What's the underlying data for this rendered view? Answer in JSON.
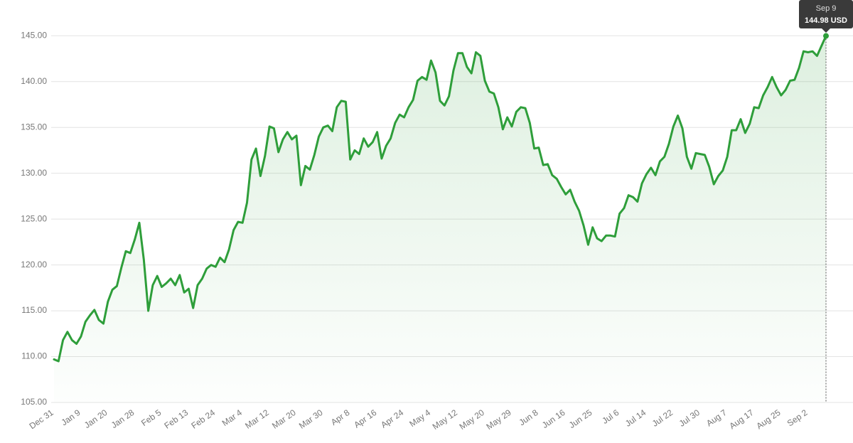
{
  "chart_data": {
    "type": "line",
    "color": "#2e9e3a",
    "grid": true,
    "ylim": [
      105,
      148.9
    ],
    "yticks": [
      {
        "value": 105,
        "label": "105.00"
      },
      {
        "value": 110,
        "label": "110.00"
      },
      {
        "value": 115,
        "label": "115.00"
      },
      {
        "value": 120,
        "label": "120.00"
      },
      {
        "value": 125,
        "label": "125.00"
      },
      {
        "value": 130,
        "label": "130.00"
      },
      {
        "value": 135,
        "label": "135.00"
      },
      {
        "value": 140,
        "label": "140.00"
      },
      {
        "value": 145,
        "label": "145.00"
      }
    ],
    "categories": [
      "Dec 31",
      null,
      null,
      null,
      null,
      null,
      "Jan 9",
      null,
      null,
      null,
      null,
      null,
      "Jan 20",
      null,
      null,
      null,
      null,
      null,
      "Jan 28",
      null,
      null,
      null,
      null,
      null,
      "Feb 5",
      null,
      null,
      null,
      null,
      null,
      "Feb 13",
      null,
      null,
      null,
      null,
      null,
      "Feb 24",
      null,
      null,
      null,
      null,
      null,
      "Mar 4",
      null,
      null,
      null,
      null,
      null,
      "Mar 12",
      null,
      null,
      null,
      null,
      null,
      "Mar 20",
      null,
      null,
      null,
      null,
      null,
      "Mar 30",
      null,
      null,
      null,
      null,
      null,
      "Apr 8",
      null,
      null,
      null,
      null,
      null,
      "Apr 16",
      null,
      null,
      null,
      null,
      null,
      "Apr 24",
      null,
      null,
      null,
      null,
      null,
      "May 4",
      null,
      null,
      null,
      null,
      null,
      "May 12",
      null,
      null,
      null,
      null,
      null,
      "May 20",
      null,
      null,
      null,
      null,
      null,
      "May 29",
      null,
      null,
      null,
      null,
      null,
      "Jun 8",
      null,
      null,
      null,
      null,
      null,
      "Jun 16",
      null,
      null,
      null,
      null,
      null,
      "Jun 25",
      null,
      null,
      null,
      null,
      null,
      "Jul 6",
      null,
      null,
      null,
      null,
      null,
      "Jul 14",
      null,
      null,
      null,
      null,
      null,
      "Jul 22",
      null,
      null,
      null,
      null,
      null,
      "Jul 30",
      null,
      null,
      null,
      null,
      null,
      "Aug 7",
      null,
      null,
      null,
      null,
      null,
      "Aug 17",
      null,
      null,
      null,
      null,
      null,
      "Aug 25",
      null,
      null,
      null,
      null,
      null,
      "Sep 2",
      null,
      null,
      null,
      null
    ],
    "values": [
      109.7,
      109.5,
      111.8,
      112.7,
      111.8,
      111.4,
      112.2,
      113.8,
      114.5,
      115.1,
      114.0,
      113.6,
      116.0,
      117.3,
      117.7,
      119.7,
      121.5,
      121.3,
      122.8,
      124.6,
      120.6,
      115.0,
      117.8,
      118.8,
      117.6,
      118.0,
      118.5,
      117.8,
      118.9,
      117.0,
      117.4,
      115.3,
      117.8,
      118.5,
      119.6,
      120.0,
      119.8,
      120.8,
      120.3,
      121.7,
      123.8,
      124.7,
      124.6,
      126.8,
      131.5,
      132.7,
      129.7,
      131.9,
      135.1,
      134.9,
      132.3,
      133.7,
      134.5,
      133.7,
      134.1,
      128.7,
      130.8,
      130.4,
      132.0,
      134.0,
      135.0,
      135.2,
      134.6,
      137.2,
      137.9,
      137.8,
      131.5,
      132.5,
      132.1,
      133.8,
      132.9,
      133.4,
      134.5,
      131.6,
      133.0,
      133.8,
      135.5,
      136.4,
      136.1,
      137.2,
      138.0,
      140.1,
      140.5,
      140.2,
      142.3,
      141.0,
      137.9,
      137.4,
      138.4,
      141.2,
      143.1,
      143.1,
      141.6,
      140.9,
      143.2,
      142.8,
      140.1,
      138.9,
      138.7,
      137.2,
      134.8,
      136.1,
      135.1,
      136.7,
      137.2,
      137.1,
      135.5,
      132.7,
      132.8,
      130.9,
      131.0,
      129.8,
      129.4,
      128.5,
      127.7,
      128.2,
      126.9,
      125.9,
      124.3,
      122.2,
      124.1,
      122.9,
      122.6,
      123.2,
      123.2,
      123.1,
      125.6,
      126.2,
      127.6,
      127.4,
      126.9,
      128.9,
      129.9,
      130.6,
      129.8,
      131.3,
      131.8,
      133.2,
      135.1,
      136.3,
      134.9,
      131.8,
      130.5,
      132.2,
      132.1,
      132.0,
      130.7,
      128.8,
      129.7,
      130.3,
      131.8,
      134.7,
      134.7,
      135.9,
      134.4,
      135.4,
      137.2,
      137.1,
      138.5,
      139.4,
      140.5,
      139.4,
      138.5,
      139.1,
      140.1,
      140.2,
      141.5,
      143.3,
      143.2,
      143.3,
      142.8,
      143.9,
      144.98
    ],
    "tooltip": {
      "category": "Sep 9",
      "value_label": "144.98 USD"
    }
  }
}
